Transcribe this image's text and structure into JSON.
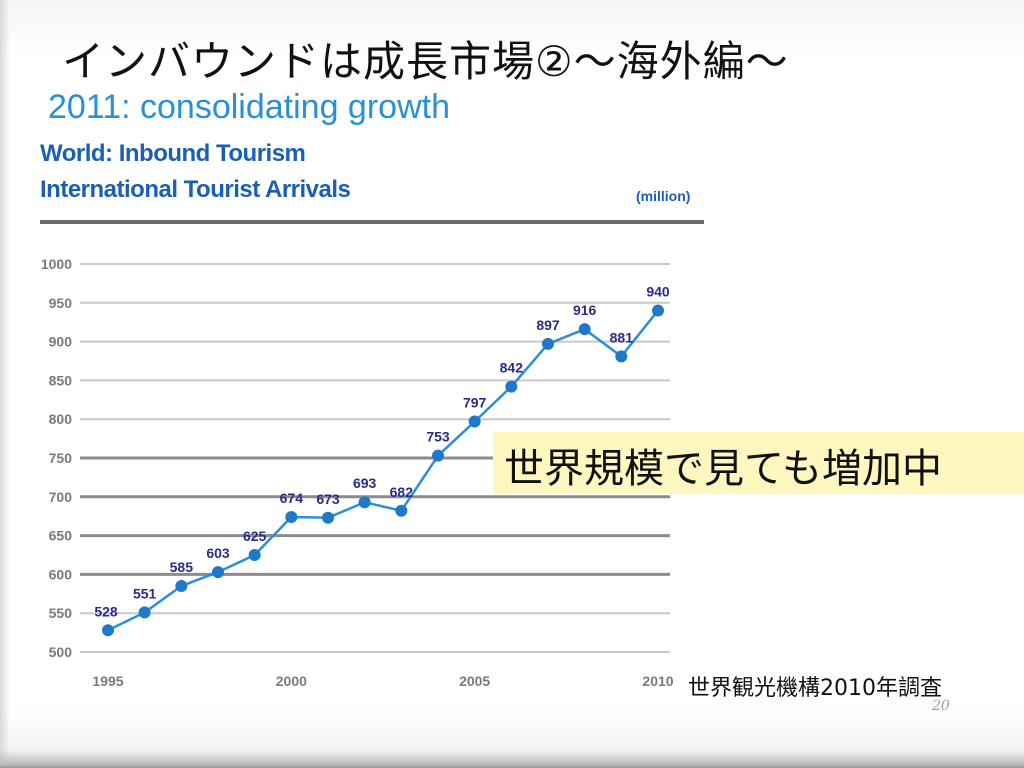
{
  "slide": {
    "title": "インバウンドは成長市場②～海外編～",
    "callout": "世界規模で見ても増加中",
    "source_note": "世界観光機構2010年調査",
    "page_number": "20"
  },
  "colors": {
    "headline": "#2a8fd6",
    "subtitle": "#1a5fb4",
    "series_line": "#2a8fd6",
    "point_fill": "#1f78c8",
    "label_text": "#2b2b8a",
    "callout_background": "#fff6c0"
  },
  "chart_data": {
    "type": "line",
    "title": "2011: consolidating growth",
    "subtitle_lines": [
      "World: Inbound Tourism",
      "International Tourist Arrivals"
    ],
    "unit": "(million)",
    "xlabel": "",
    "ylabel": "",
    "x": [
      1995,
      1996,
      1997,
      1998,
      1999,
      2000,
      2001,
      2002,
      2003,
      2004,
      2005,
      2006,
      2007,
      2008,
      2009,
      2010
    ],
    "series": [
      {
        "values": [
          528,
          551,
          585,
          603,
          625,
          674,
          673,
          693,
          682,
          753,
          797,
          842,
          897,
          916,
          881,
          940
        ],
        "labels": [
          "528",
          "551",
          "585",
          "603",
          "625",
          "674",
          "673",
          "693",
          "682",
          "753",
          "797",
          "842",
          "897",
          "916",
          "881",
          "940"
        ]
      }
    ],
    "y_ticks": [
      "1000",
      "950",
      "900",
      "850",
      "800",
      "750",
      "700",
      "650",
      "600",
      "550",
      "500"
    ],
    "x_ticks": [
      "1995",
      "2000",
      "2005",
      "2010"
    ],
    "ylim": [
      500,
      1000
    ],
    "xlim": [
      1995,
      2010
    ],
    "grid": true,
    "legend": "none"
  }
}
